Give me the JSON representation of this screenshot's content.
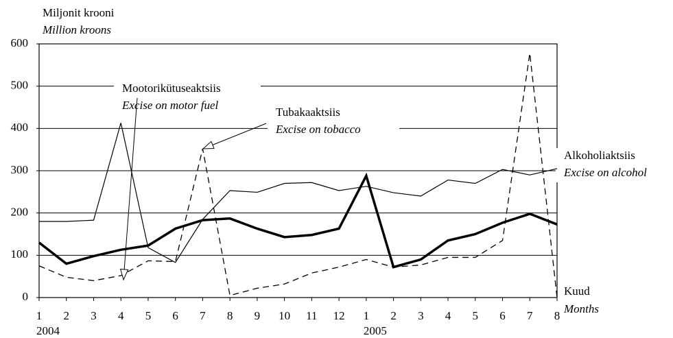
{
  "chart_data": {
    "type": "line",
    "y_label": "Miljonit krooni",
    "y_label_en": "Million kroons",
    "x_label": "Kuud",
    "x_label_en": "Months",
    "categories": [
      "1",
      "2",
      "3",
      "4",
      "5",
      "6",
      "7",
      "8",
      "9",
      "10",
      "11",
      "12",
      "1",
      "2",
      "3",
      "4",
      "5",
      "6",
      "7",
      "8"
    ],
    "x_groups": [
      "2004",
      null,
      null,
      null,
      null,
      null,
      null,
      null,
      null,
      null,
      null,
      null,
      "2005",
      null,
      null,
      null,
      null,
      null,
      null,
      null
    ],
    "series": [
      {
        "name": "Mootorikütuseaktsiis",
        "name_en": "Excise on motor fuel",
        "color": "#000",
        "style": "solid",
        "width": 1.2,
        "values": [
          180,
          180,
          183,
          413,
          118,
          83,
          185,
          253,
          249,
          270,
          272,
          253,
          263,
          248,
          240,
          278,
          270,
          303,
          290,
          305
        ]
      },
      {
        "name": "Tubakaaktsiis",
        "name_en": "Excise on tobacco",
        "color": "#000",
        "style": "dashed",
        "width": 1.3,
        "values": [
          75,
          48,
          40,
          52,
          87,
          85,
          352,
          5,
          22,
          32,
          58,
          72,
          90,
          72,
          77,
          95,
          95,
          135,
          578,
          0
        ]
      },
      {
        "name": "Alkoholiaktsiis",
        "name_en": "Excise on alcohol",
        "color": "#000",
        "style": "solid",
        "width": 3.5,
        "values": [
          130,
          80,
          98,
          113,
          123,
          163,
          183,
          187,
          163,
          143,
          148,
          163,
          288,
          72,
          90,
          135,
          150,
          177,
          198,
          173
        ]
      }
    ],
    "ylim": [
      0,
      600
    ],
    "yticks": [
      0,
      100,
      200,
      300,
      400,
      500,
      600
    ],
    "grid": true
  }
}
